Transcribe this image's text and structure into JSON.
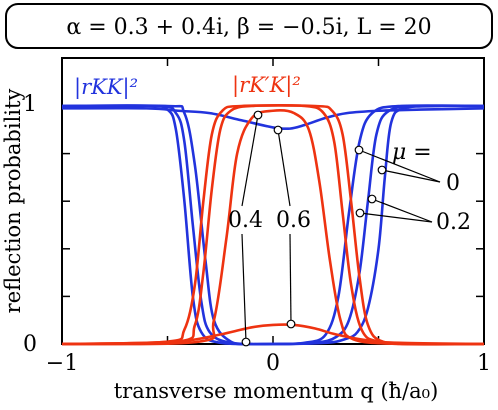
{
  "chart_data": {
    "type": "line",
    "title": "α = 0.3 + 0.4i,  β = −0.5i,  L = 20",
    "xlabel": "transverse momentum  q (ħ/a₀)",
    "ylabel": "reflection probability",
    "xlim": [
      -1,
      1
    ],
    "ylim": [
      0,
      1
    ],
    "x_ticks": [
      "−1",
      "0",
      "1"
    ],
    "y_ticks": [
      "0",
      "1"
    ],
    "grid": false,
    "series_labels": {
      "kk": "|rKK|²",
      "kpk": "|rK′K|²"
    },
    "series_colors": {
      "kk": "#2233dd",
      "kpk": "#ee3311"
    },
    "mu_label": "μ =",
    "annotations": [
      {
        "text": "0",
        "near": "right"
      },
      {
        "text": "0.2",
        "near": "right"
      },
      {
        "text": "0.4",
        "near": "center-left"
      },
      {
        "text": "0.6",
        "near": "center"
      }
    ],
    "series": [
      {
        "family": "kk",
        "mu": 0,
        "points": [
          [
            -1,
            1
          ],
          [
            -0.6,
            1
          ],
          [
            -0.5,
            0.985
          ],
          [
            -0.46,
            0.9
          ],
          [
            -0.42,
            0.6
          ],
          [
            -0.38,
            0.2
          ],
          [
            -0.34,
            0.05
          ],
          [
            -0.25,
            0.005
          ],
          [
            0,
            0
          ],
          [
            0.25,
            0.005
          ],
          [
            0.34,
            0.02
          ],
          [
            0.4,
            0.05
          ],
          [
            0.45,
            0.15
          ],
          [
            0.5,
            0.4
          ],
          [
            0.53,
            0.7
          ],
          [
            0.56,
            0.93
          ],
          [
            0.62,
            0.99
          ],
          [
            0.8,
            1
          ],
          [
            1,
            1
          ]
        ]
      },
      {
        "family": "kk",
        "mu": 0.2,
        "points": [
          [
            -1,
            1
          ],
          [
            -0.55,
            1
          ],
          [
            -0.46,
            0.97
          ],
          [
            -0.42,
            0.85
          ],
          [
            -0.38,
            0.5
          ],
          [
            -0.34,
            0.18
          ],
          [
            -0.3,
            0.05
          ],
          [
            -0.2,
            0.005
          ],
          [
            0,
            0
          ],
          [
            0.2,
            0.005
          ],
          [
            0.3,
            0.03
          ],
          [
            0.36,
            0.1
          ],
          [
            0.41,
            0.3
          ],
          [
            0.45,
            0.6
          ],
          [
            0.49,
            0.88
          ],
          [
            0.55,
            0.98
          ],
          [
            0.7,
            1
          ],
          [
            1,
            1
          ]
        ]
      },
      {
        "family": "kk",
        "mu": 0.4,
        "points": [
          [
            -1,
            1
          ],
          [
            -0.5,
            1
          ],
          [
            -0.42,
            0.97
          ],
          [
            -0.37,
            0.75
          ],
          [
            -0.32,
            0.35
          ],
          [
            -0.28,
            0.1
          ],
          [
            -0.2,
            0.01
          ],
          [
            -0.1,
            0
          ],
          [
            0,
            0
          ],
          [
            0.15,
            0.005
          ],
          [
            0.25,
            0.04
          ],
          [
            0.31,
            0.2
          ],
          [
            0.36,
            0.55
          ],
          [
            0.41,
            0.85
          ],
          [
            0.47,
            0.97
          ],
          [
            0.6,
            1
          ],
          [
            1,
            1
          ]
        ]
      },
      {
        "family": "kk",
        "mu": 0.6,
        "points": [
          [
            -1,
            0.99
          ],
          [
            -0.6,
            0.99
          ],
          [
            -0.45,
            0.98
          ],
          [
            -0.3,
            0.97
          ],
          [
            -0.15,
            0.94
          ],
          [
            0,
            0.91
          ],
          [
            0.08,
            0.905
          ],
          [
            0.15,
            0.92
          ],
          [
            0.25,
            0.95
          ],
          [
            0.35,
            0.97
          ],
          [
            0.5,
            0.98
          ],
          [
            0.7,
            0.985
          ],
          [
            1,
            0.99
          ]
        ]
      },
      {
        "family": "kpk",
        "mu": 0,
        "points": [
          [
            -1,
            0
          ],
          [
            -0.5,
            0.01
          ],
          [
            -0.42,
            0.06
          ],
          [
            -0.37,
            0.25
          ],
          [
            -0.33,
            0.6
          ],
          [
            -0.29,
            0.88
          ],
          [
            -0.24,
            0.98
          ],
          [
            -0.15,
            1
          ],
          [
            0.2,
            1
          ],
          [
            0.28,
            0.98
          ],
          [
            0.33,
            0.88
          ],
          [
            0.37,
            0.6
          ],
          [
            0.41,
            0.28
          ],
          [
            0.45,
            0.08
          ],
          [
            0.52,
            0.01
          ],
          [
            0.7,
            0
          ],
          [
            1,
            0
          ]
        ]
      },
      {
        "family": "kpk",
        "mu": 0.2,
        "points": [
          [
            -1,
            0
          ],
          [
            -0.45,
            0.01
          ],
          [
            -0.37,
            0.08
          ],
          [
            -0.33,
            0.3
          ],
          [
            -0.29,
            0.65
          ],
          [
            -0.25,
            0.9
          ],
          [
            -0.2,
            0.98
          ],
          [
            -0.1,
            1
          ],
          [
            0.15,
            1
          ],
          [
            0.24,
            0.97
          ],
          [
            0.29,
            0.85
          ],
          [
            0.33,
            0.55
          ],
          [
            0.37,
            0.25
          ],
          [
            0.42,
            0.06
          ],
          [
            0.5,
            0.01
          ],
          [
            0.7,
            0
          ],
          [
            1,
            0
          ]
        ]
      },
      {
        "family": "kpk",
        "mu": 0.4,
        "points": [
          [
            -1,
            0
          ],
          [
            -0.35,
            0.01
          ],
          [
            -0.28,
            0.1
          ],
          [
            -0.22,
            0.45
          ],
          [
            -0.17,
            0.8
          ],
          [
            -0.1,
            0.95
          ],
          [
            0,
            0.98
          ],
          [
            0.1,
            0.97
          ],
          [
            0.17,
            0.9
          ],
          [
            0.22,
            0.68
          ],
          [
            0.27,
            0.35
          ],
          [
            0.32,
            0.1
          ],
          [
            0.38,
            0.02
          ],
          [
            0.6,
            0
          ],
          [
            1,
            0
          ]
        ]
      },
      {
        "family": "kpk",
        "mu": 0.6,
        "points": [
          [
            -1,
            0
          ],
          [
            -0.6,
            0.005
          ],
          [
            -0.4,
            0.015
          ],
          [
            -0.25,
            0.04
          ],
          [
            -0.1,
            0.07
          ],
          [
            0,
            0.08
          ],
          [
            0.1,
            0.08
          ],
          [
            0.2,
            0.065
          ],
          [
            0.3,
            0.04
          ],
          [
            0.45,
            0.015
          ],
          [
            0.6,
            0.005
          ],
          [
            1,
            0
          ]
        ]
      }
    ]
  }
}
